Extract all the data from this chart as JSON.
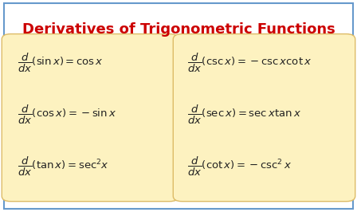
{
  "title": "Derivatives of Trigonometric Functions",
  "title_color": "#cc0000",
  "title_fontsize": 13,
  "bg_color": "#ffffff",
  "outer_border_color": "#6699cc",
  "box_fill": "#fdf2c0",
  "box_edge_color": "#ddbb66",
  "left_formulas": [
    "$\\dfrac{d}{dx}(\\sin x) = \\cos x$",
    "$\\dfrac{d}{dx}(\\cos x) = -\\sin x$",
    "$\\dfrac{d}{dx}(\\tan x) = \\mathrm{sec}^2 x$"
  ],
  "right_formulas": [
    "$\\dfrac{d}{dx}(\\csc x) = -\\csc x\\cot x$",
    "$\\dfrac{d}{dx}(\\sec x) = \\sec x\\tan x$",
    "$\\dfrac{d}{dx}(\\cot x) = -\\csc^2 x$"
  ],
  "formula_color": "#222222",
  "formula_fontsize": 9.5,
  "fig_width": 4.48,
  "fig_height": 2.66,
  "dpi": 100
}
